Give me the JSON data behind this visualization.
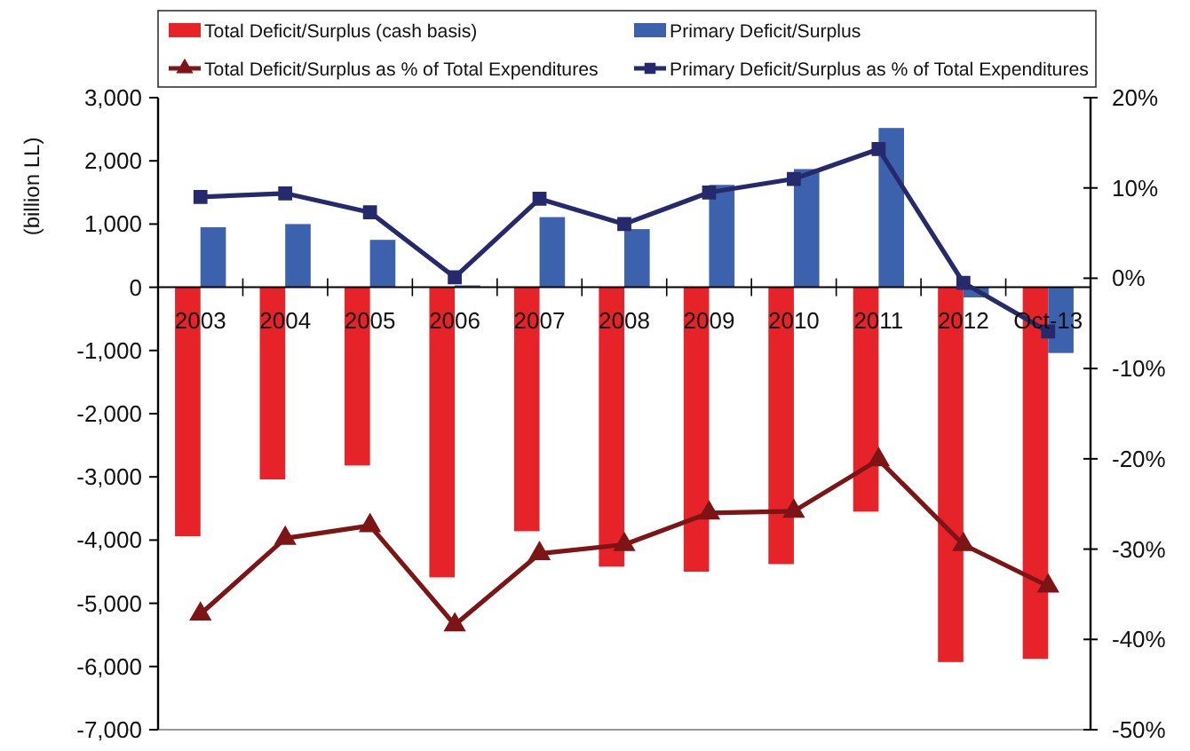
{
  "chart_data": {
    "type": "bar",
    "ylabel": "(billion LL)",
    "categories": [
      "2003",
      "2004",
      "2005",
      "2006",
      "2007",
      "2008",
      "2009",
      "2010",
      "2011",
      "2012",
      "Oct-13"
    ],
    "series": [
      {
        "name": "Total Deficit/Surplus (cash basis)",
        "color": "#e52329",
        "values": [
          -3940,
          -3040,
          -2820,
          -4590,
          -3860,
          -4420,
          -4500,
          -4380,
          -3550,
          -5930,
          -5880
        ]
      },
      {
        "name": "Primary Deficit/Surplus",
        "color": "#3d62ad",
        "values": [
          950,
          1000,
          750,
          30,
          1110,
          920,
          1620,
          1870,
          2520,
          -160,
          -1040
        ]
      },
      {
        "name": "Total Deficit/Surplus as % of Total Expenditures",
        "type": "line",
        "axis": "y2",
        "color": "#7d1517",
        "marker": "triangle",
        "values": [
          -37.2,
          -28.8,
          -27.4,
          -38.4,
          -30.5,
          -29.5,
          -26.0,
          -25.8,
          -20.1,
          -29.5,
          -34.1
        ]
      },
      {
        "name": "Primary Deficit/Surplus as % of Total Expenditures",
        "type": "line",
        "axis": "y2",
        "color": "#262a6d",
        "marker": "square",
        "values": [
          9.0,
          9.4,
          7.3,
          0.1,
          8.8,
          6.0,
          9.5,
          11.0,
          14.3,
          -0.5,
          -5.9
        ]
      }
    ],
    "ylim": [
      -7000,
      3000
    ],
    "yticks": [
      {
        "value": -7000,
        "label": "-7,000"
      },
      {
        "value": -6000,
        "label": "-6,000"
      },
      {
        "value": -5000,
        "label": "-5,000"
      },
      {
        "value": -4000,
        "label": "-4,000"
      },
      {
        "value": -3000,
        "label": "-3,000"
      },
      {
        "value": -2000,
        "label": "-2,000"
      },
      {
        "value": -1000,
        "label": "-1,000"
      },
      0,
      {
        "value": 1000,
        "label": "1,000"
      },
      {
        "value": 2000,
        "label": "2,000"
      },
      {
        "value": 3000,
        "label": "3,000"
      }
    ],
    "y2lim": [
      -50,
      20
    ],
    "y2ticks": [
      {
        "value": -50,
        "label": "-50%"
      },
      {
        "value": -40,
        "label": "-40%"
      },
      {
        "value": -30,
        "label": "-30%"
      },
      {
        "value": -20,
        "label": "-20%"
      },
      {
        "value": -10,
        "label": "-10%"
      },
      {
        "value": 0,
        "label": "0%"
      },
      {
        "value": 10,
        "label": "10%"
      },
      {
        "value": 20,
        "label": "20%"
      }
    ],
    "legend": "top"
  }
}
